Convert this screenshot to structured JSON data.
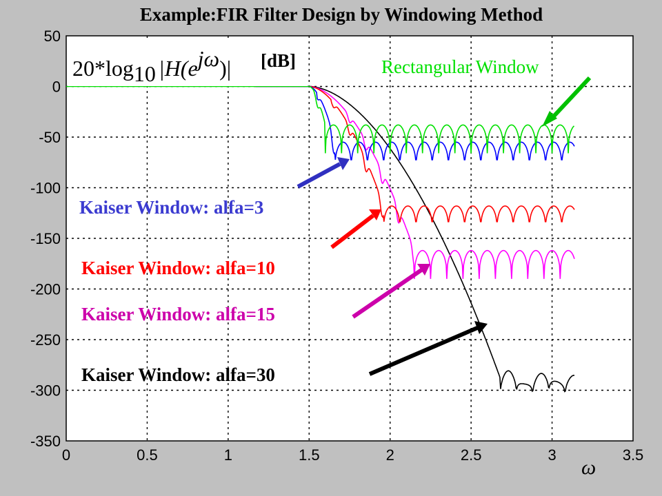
{
  "chart_data": {
    "type": "line",
    "title": "Example:FIR Filter Design by Windowing Method",
    "xlabel": "ω",
    "ylabel_formula": {
      "prefix": "20*log",
      "sub": "10",
      "body": "|H(e",
      "sup": "jω",
      "close": ")|",
      "unit": "[dB]"
    },
    "xlim": [
      0,
      3.5
    ],
    "ylim": [
      -350,
      50
    ],
    "xticks": [
      "0",
      "0.5",
      "1",
      "1.5",
      "2",
      "2.5",
      "3",
      "3.5"
    ],
    "yticks": [
      "50",
      "0",
      "-50",
      "-100",
      "-150",
      "-200",
      "-250",
      "-300",
      "-350"
    ],
    "grid": true,
    "series": [
      {
        "name": "Rectangular Window",
        "color": "#00e000",
        "passband_edge": 1.5,
        "floor": -38,
        "lobe_depth": 28,
        "lobe_period": 0.1,
        "end": 3.14,
        "rolloff_end": 1.6
      },
      {
        "name": "Kaiser Window: alfa=3",
        "color": "#0000ff",
        "passband_edge": 1.5,
        "floor": -55,
        "lobe_depth": 28,
        "lobe_period": 0.1,
        "end": 3.14,
        "rolloff_end": 1.66
      },
      {
        "name": "Kaiser Window: alfa=10",
        "color": "#ff0000",
        "passband_edge": 1.5,
        "floor": -118,
        "lobe_depth": 25,
        "lobe_period": 0.1,
        "end": 3.14,
        "rolloff_end": 1.96
      },
      {
        "name": "Kaiser Window: alfa=15",
        "color": "#ff00ff",
        "passband_edge": 1.5,
        "floor": -162,
        "lobe_depth": 28,
        "lobe_period": 0.1,
        "end": 3.14,
        "rolloff_end": 2.15
      },
      {
        "name": "Kaiser Window: alfa=30",
        "color": "#000000",
        "passband_edge": 1.5,
        "floor": -288,
        "lobe_depth": 18,
        "lobe_period": 0.1,
        "end": 3.14,
        "rolloff_end": 2.68
      }
    ],
    "annotations": [
      {
        "text": "Rectangular Window",
        "color": "#00e000"
      },
      {
        "text": "Kaiser Window: alfa=3",
        "color": "#3b3bd0"
      },
      {
        "text": "Kaiser Window: alfa=10",
        "color": "#ff0000"
      },
      {
        "text": "Kaiser Window: alfa=15",
        "color": "#cc00aa"
      },
      {
        "text": "Kaiser Window: alfa=30",
        "color": "#000000"
      }
    ]
  }
}
